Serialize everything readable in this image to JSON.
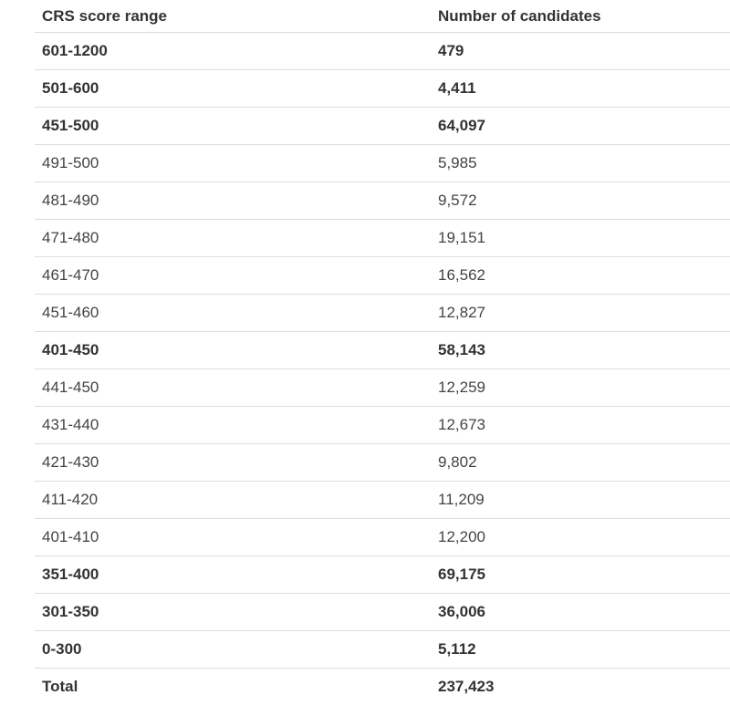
{
  "table": {
    "headers": {
      "range": "CRS score range",
      "count": "Number of candidates"
    },
    "rows": [
      {
        "range": "601-1200",
        "count": "479",
        "bold": true
      },
      {
        "range": "501-600",
        "count": "4,411",
        "bold": true
      },
      {
        "range": "451-500",
        "count": "64,097",
        "bold": true
      },
      {
        "range": "491-500",
        "count": "5,985",
        "bold": false
      },
      {
        "range": "481-490",
        "count": "9,572",
        "bold": false
      },
      {
        "range": "471-480",
        "count": "19,151",
        "bold": false
      },
      {
        "range": "461-470",
        "count": "16,562",
        "bold": false
      },
      {
        "range": "451-460",
        "count": "12,827",
        "bold": false
      },
      {
        "range": "401-450",
        "count": "58,143",
        "bold": true
      },
      {
        "range": "441-450",
        "count": "12,259",
        "bold": false
      },
      {
        "range": "431-440",
        "count": "12,673",
        "bold": false
      },
      {
        "range": "421-430",
        "count": "9,802",
        "bold": false
      },
      {
        "range": "411-420",
        "count": "11,209",
        "bold": false
      },
      {
        "range": "401-410",
        "count": "12,200",
        "bold": false
      },
      {
        "range": "351-400",
        "count": "69,175",
        "bold": true
      },
      {
        "range": "301-350",
        "count": "36,006",
        "bold": true
      },
      {
        "range": "0-300",
        "count": "5,112",
        "bold": true
      },
      {
        "range": "Total",
        "count": "237,423",
        "bold": true
      }
    ]
  }
}
